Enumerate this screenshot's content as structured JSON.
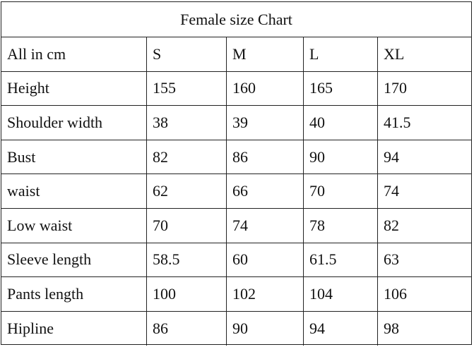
{
  "title": "Female size Chart",
  "header": [
    "All in cm",
    "S",
    "M",
    "L",
    "XL"
  ],
  "rows": [
    [
      "Height",
      "155",
      "160",
      "165",
      "170"
    ],
    [
      "Shoulder width",
      "38",
      "39",
      "40",
      "41.5"
    ],
    [
      "Bust",
      "82",
      "86",
      "90",
      "94"
    ],
    [
      "waist",
      "62",
      "66",
      "70",
      "74"
    ],
    [
      "Low waist",
      "70",
      "74",
      "78",
      "82"
    ],
    [
      "Sleeve length",
      "58.5",
      "60",
      "61.5",
      "63"
    ],
    [
      "Pants length",
      "100",
      "102",
      "104",
      "106"
    ],
    [
      "Hipline",
      "86",
      "90",
      "94",
      "98"
    ]
  ]
}
